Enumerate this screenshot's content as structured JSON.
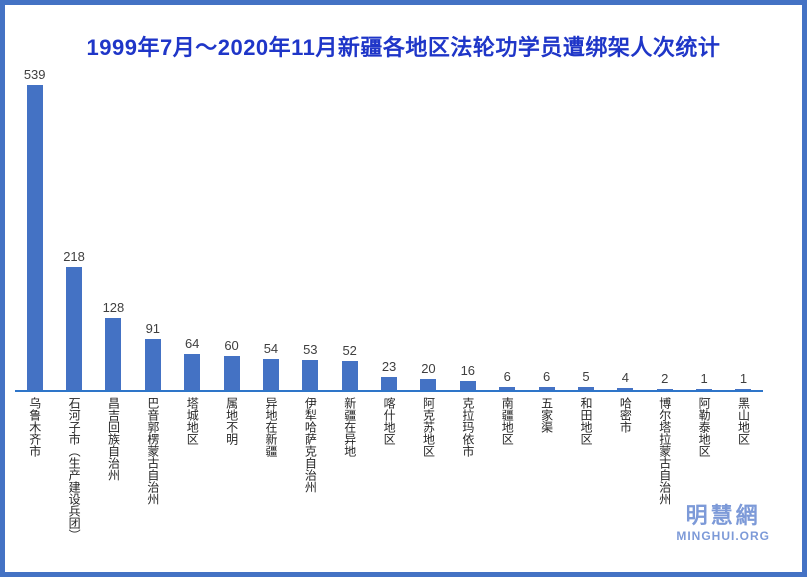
{
  "chart_data": {
    "type": "bar",
    "title": "1999年7月～2020年11月新疆各地区法轮功学员遭绑架人次统计",
    "categories": [
      "乌鲁木齐市",
      "石河子市（生产建设兵团）",
      "昌吉回族自治州",
      "巴音郭楞蒙古自治州",
      "塔城地区",
      "属地不明",
      "异地在新疆",
      "伊犁哈萨克自治州",
      "新疆在异地",
      "喀什地区",
      "阿克苏地区",
      "克拉玛依市",
      "南疆地区",
      "五家渠",
      "和田地区",
      "哈密市",
      "博尔塔拉蒙古自治州",
      "阿勒泰地区",
      "黑山地区"
    ],
    "values": [
      539,
      218,
      128,
      91,
      64,
      60,
      54,
      53,
      52,
      23,
      20,
      16,
      6,
      6,
      5,
      4,
      2,
      1,
      1
    ],
    "xlabel": "",
    "ylabel": "",
    "ylim": [
      0,
      539
    ],
    "grid": false,
    "legend": false,
    "value_labels_shown": true,
    "category_label_orientation": "vertical"
  },
  "watermark": {
    "chinese": "明慧網",
    "english": "MINGHUI.ORG"
  },
  "colors": {
    "frame_border": "#4472C4",
    "bar": "#4472C4",
    "axis_line": "#2E75C9",
    "title_text": "#1F36C8",
    "label_text": "#262626",
    "value_text": "#3F3F3F",
    "watermark_text": "#7D9AD8",
    "background": "#FFFFFF"
  }
}
